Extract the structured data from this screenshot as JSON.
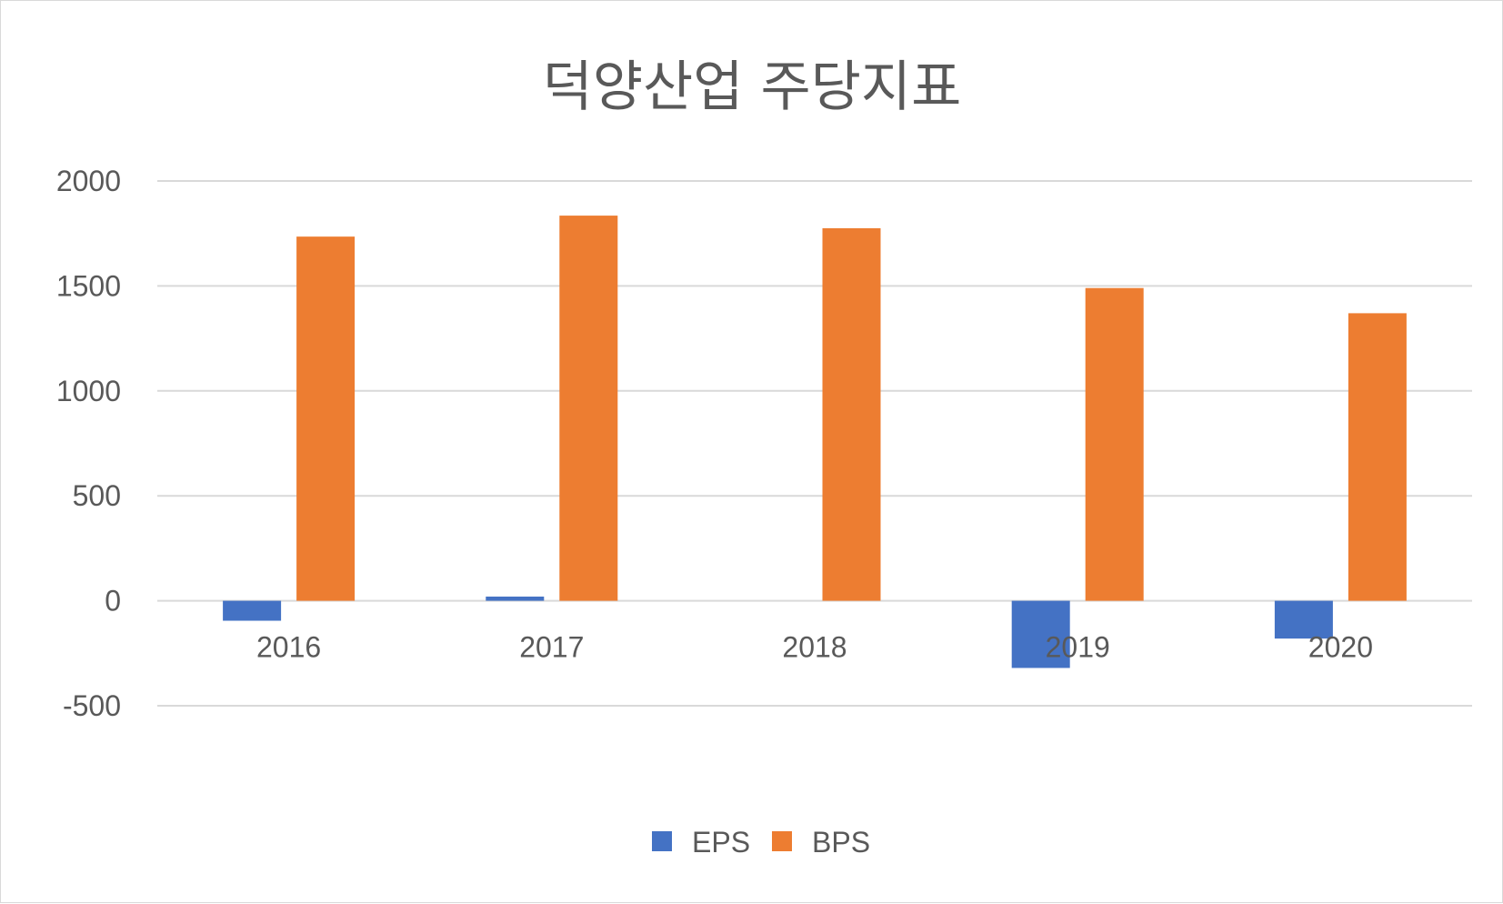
{
  "chart_data": {
    "type": "bar",
    "title": "덕양산업 주당지표",
    "xlabel": "",
    "ylabel": "",
    "categories": [
      "2016",
      "2017",
      "2018",
      "2019",
      "2020"
    ],
    "series": [
      {
        "name": "EPS",
        "values": [
          -95,
          20,
          0,
          -320,
          -180
        ],
        "color": "#4472C4"
      },
      {
        "name": "BPS",
        "values": [
          1735,
          1835,
          1775,
          1490,
          1370
        ],
        "color": "#ED7D31"
      }
    ],
    "ylim": [
      -500,
      2000
    ],
    "yticks": [
      2000,
      1500,
      1000,
      500,
      0,
      -500
    ],
    "grid": true,
    "legend_position": "bottom"
  }
}
